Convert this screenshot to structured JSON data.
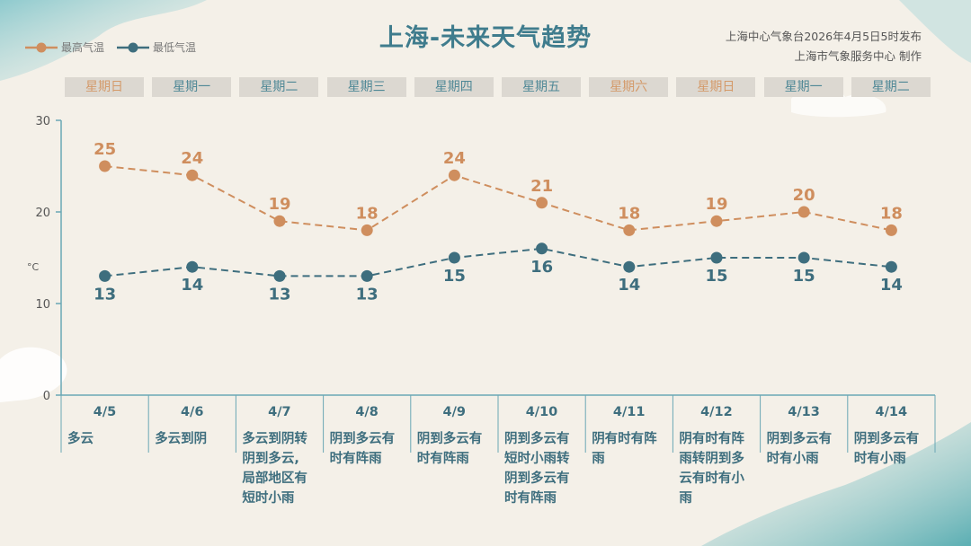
{
  "title": "上海-未来天气趋势",
  "source": {
    "line1": "上海中心气象台2026年4月5日5时发布",
    "line2": "上海市气象服务中心  制作"
  },
  "legend": {
    "high": "最高气温",
    "low": "最低气温"
  },
  "colors": {
    "high": "#cf8e5e",
    "low": "#3e6e7e",
    "axis": "#6aa7b5"
  },
  "days": [
    {
      "weekday": "星期日",
      "weekend": true,
      "date": "4/5",
      "cond": [
        "多云"
      ]
    },
    {
      "weekday": "星期一",
      "weekend": false,
      "date": "4/6",
      "cond": [
        "多云到阴"
      ]
    },
    {
      "weekday": "星期二",
      "weekend": false,
      "date": "4/7",
      "cond": [
        "多云到阴转",
        "阴到多云,",
        "局部地区有",
        "短时小雨"
      ]
    },
    {
      "weekday": "星期三",
      "weekend": false,
      "date": "4/8",
      "cond": [
        "阴到多云有",
        "时有阵雨"
      ]
    },
    {
      "weekday": "星期四",
      "weekend": false,
      "date": "4/9",
      "cond": [
        "阴到多云有",
        "时有阵雨"
      ]
    },
    {
      "weekday": "星期五",
      "weekend": false,
      "date": "4/10",
      "cond": [
        "阴到多云有",
        "短时小雨转",
        "阴到多云有",
        "时有阵雨"
      ]
    },
    {
      "weekday": "星期六",
      "weekend": true,
      "date": "4/11",
      "cond": [
        "阴有时有阵",
        "雨"
      ]
    },
    {
      "weekday": "星期日",
      "weekend": true,
      "date": "4/12",
      "cond": [
        "阴有时有阵",
        "雨转阴到多",
        "云有时有小",
        "雨"
      ]
    },
    {
      "weekday": "星期一",
      "weekend": false,
      "date": "4/13",
      "cond": [
        "阴到多云有",
        "时有小雨"
      ]
    },
    {
      "weekday": "星期二",
      "weekend": false,
      "date": "4/14",
      "cond": [
        "阴到多云有",
        "时有小雨"
      ]
    }
  ],
  "chart_data": {
    "type": "line",
    "x": [
      "4/5",
      "4/6",
      "4/7",
      "4/8",
      "4/9",
      "4/10",
      "4/11",
      "4/12",
      "4/13",
      "4/14"
    ],
    "series": [
      {
        "name": "最高气温",
        "values": [
          25,
          24,
          19,
          18,
          24,
          21,
          18,
          19,
          20,
          18
        ]
      },
      {
        "name": "最低气温",
        "values": [
          13,
          14,
          13,
          13,
          15,
          16,
          14,
          15,
          15,
          14
        ]
      }
    ],
    "ylabel": "°C",
    "ylim": [
      0,
      30
    ],
    "yticks": [
      0,
      10,
      20,
      30
    ],
    "grid": false,
    "legend": "top-left"
  }
}
